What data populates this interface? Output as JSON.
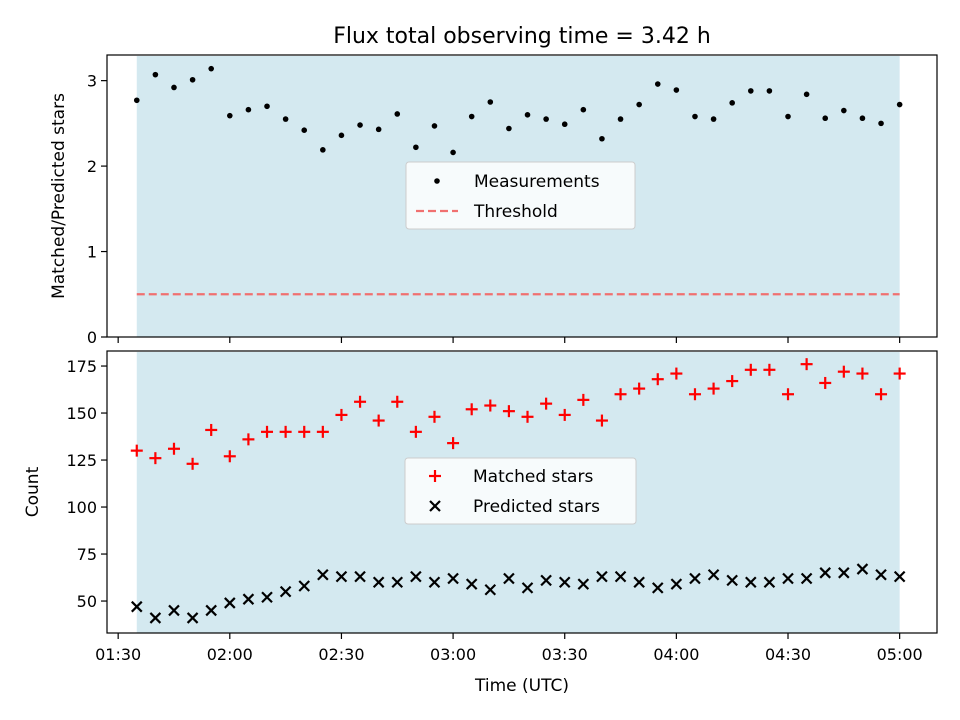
{
  "chart_data": [
    {
      "type": "scatter",
      "title": "Flux total observing time = 3.42 h",
      "ylabel": "Matched/Predicted stars",
      "xlabel": "",
      "ylim": [
        0,
        3.3
      ],
      "yticks": [
        0,
        1,
        2,
        3
      ],
      "x": [
        "01:35",
        "01:40",
        "01:45",
        "01:50",
        "01:55",
        "02:00",
        "02:05",
        "02:10",
        "02:15",
        "02:20",
        "02:25",
        "02:30",
        "02:35",
        "02:40",
        "02:45",
        "02:50",
        "02:55",
        "03:00",
        "03:05",
        "03:10",
        "03:15",
        "03:20",
        "03:25",
        "03:30",
        "03:35",
        "03:40",
        "03:45",
        "03:50",
        "03:55",
        "04:00",
        "04:05",
        "04:10",
        "04:15",
        "04:20",
        "04:25",
        "04:30",
        "04:35",
        "04:40",
        "04:45",
        "04:50",
        "04:55",
        "05:00"
      ],
      "series": [
        {
          "name": "Measurements",
          "marker": "dot",
          "color": "#000000",
          "values": [
            2.77,
            3.07,
            2.92,
            3.01,
            3.14,
            2.59,
            2.66,
            2.7,
            2.55,
            2.42,
            2.19,
            2.36,
            2.48,
            2.43,
            2.61,
            2.22,
            2.47,
            2.16,
            2.58,
            2.75,
            2.44,
            2.6,
            2.55,
            2.49,
            2.66,
            2.32,
            2.55,
            2.72,
            2.96,
            2.89,
            2.58,
            2.55,
            2.74,
            2.88,
            2.88,
            2.58,
            2.84,
            2.56,
            2.65,
            2.56,
            2.5,
            2.72
          ]
        }
      ],
      "threshold": {
        "name": "Threshold",
        "value": 0.5,
        "color": "#f07070",
        "style": "dashed"
      },
      "shaded_span": {
        "from": "01:35",
        "to": "05:00",
        "color": "#d4e9f0"
      },
      "legend": "center"
    },
    {
      "type": "scatter",
      "title": "",
      "ylabel": "Count",
      "xlabel": "Time (UTC)",
      "ylim": [
        33,
        183
      ],
      "yticks": [
        50,
        75,
        100,
        125,
        150,
        175
      ],
      "x": [
        "01:35",
        "01:40",
        "01:45",
        "01:50",
        "01:55",
        "02:00",
        "02:05",
        "02:10",
        "02:15",
        "02:20",
        "02:25",
        "02:30",
        "02:35",
        "02:40",
        "02:45",
        "02:50",
        "02:55",
        "03:00",
        "03:05",
        "03:10",
        "03:15",
        "03:20",
        "03:25",
        "03:30",
        "03:35",
        "03:40",
        "03:45",
        "03:50",
        "03:55",
        "04:00",
        "04:05",
        "04:10",
        "04:15",
        "04:20",
        "04:25",
        "04:30",
        "04:35",
        "04:40",
        "04:45",
        "04:50",
        "04:55",
        "05:00"
      ],
      "xlim": [
        "01:27",
        "05:00"
      ],
      "xticks": [
        "01:30",
        "02:00",
        "02:30",
        "03:00",
        "03:30",
        "04:00",
        "04:30",
        "05:00"
      ],
      "series": [
        {
          "name": "Matched stars",
          "marker": "plus",
          "color": "#ff0000",
          "values": [
            130,
            126,
            131,
            123,
            141,
            127,
            136,
            140,
            140,
            140,
            140,
            149,
            156,
            146,
            156,
            140,
            148,
            134,
            152,
            154,
            151,
            148,
            155,
            149,
            157,
            146,
            160,
            163,
            168,
            171,
            160,
            163,
            167,
            173,
            173,
            160,
            176,
            166,
            172,
            171,
            160,
            171
          ]
        },
        {
          "name": "Predicted stars",
          "marker": "x",
          "color": "#000000",
          "values": [
            47,
            41,
            45,
            41,
            45,
            49,
            51,
            52,
            55,
            58,
            64,
            63,
            63,
            60,
            60,
            63,
            60,
            62,
            59,
            56,
            62,
            57,
            61,
            60,
            59,
            63,
            63,
            60,
            57,
            59,
            62,
            64,
            61,
            60,
            60,
            62,
            62,
            65,
            65,
            67,
            64,
            63
          ]
        }
      ],
      "shaded_span": {
        "from": "01:35",
        "to": "05:00",
        "color": "#d4e9f0"
      },
      "legend": "center"
    }
  ]
}
